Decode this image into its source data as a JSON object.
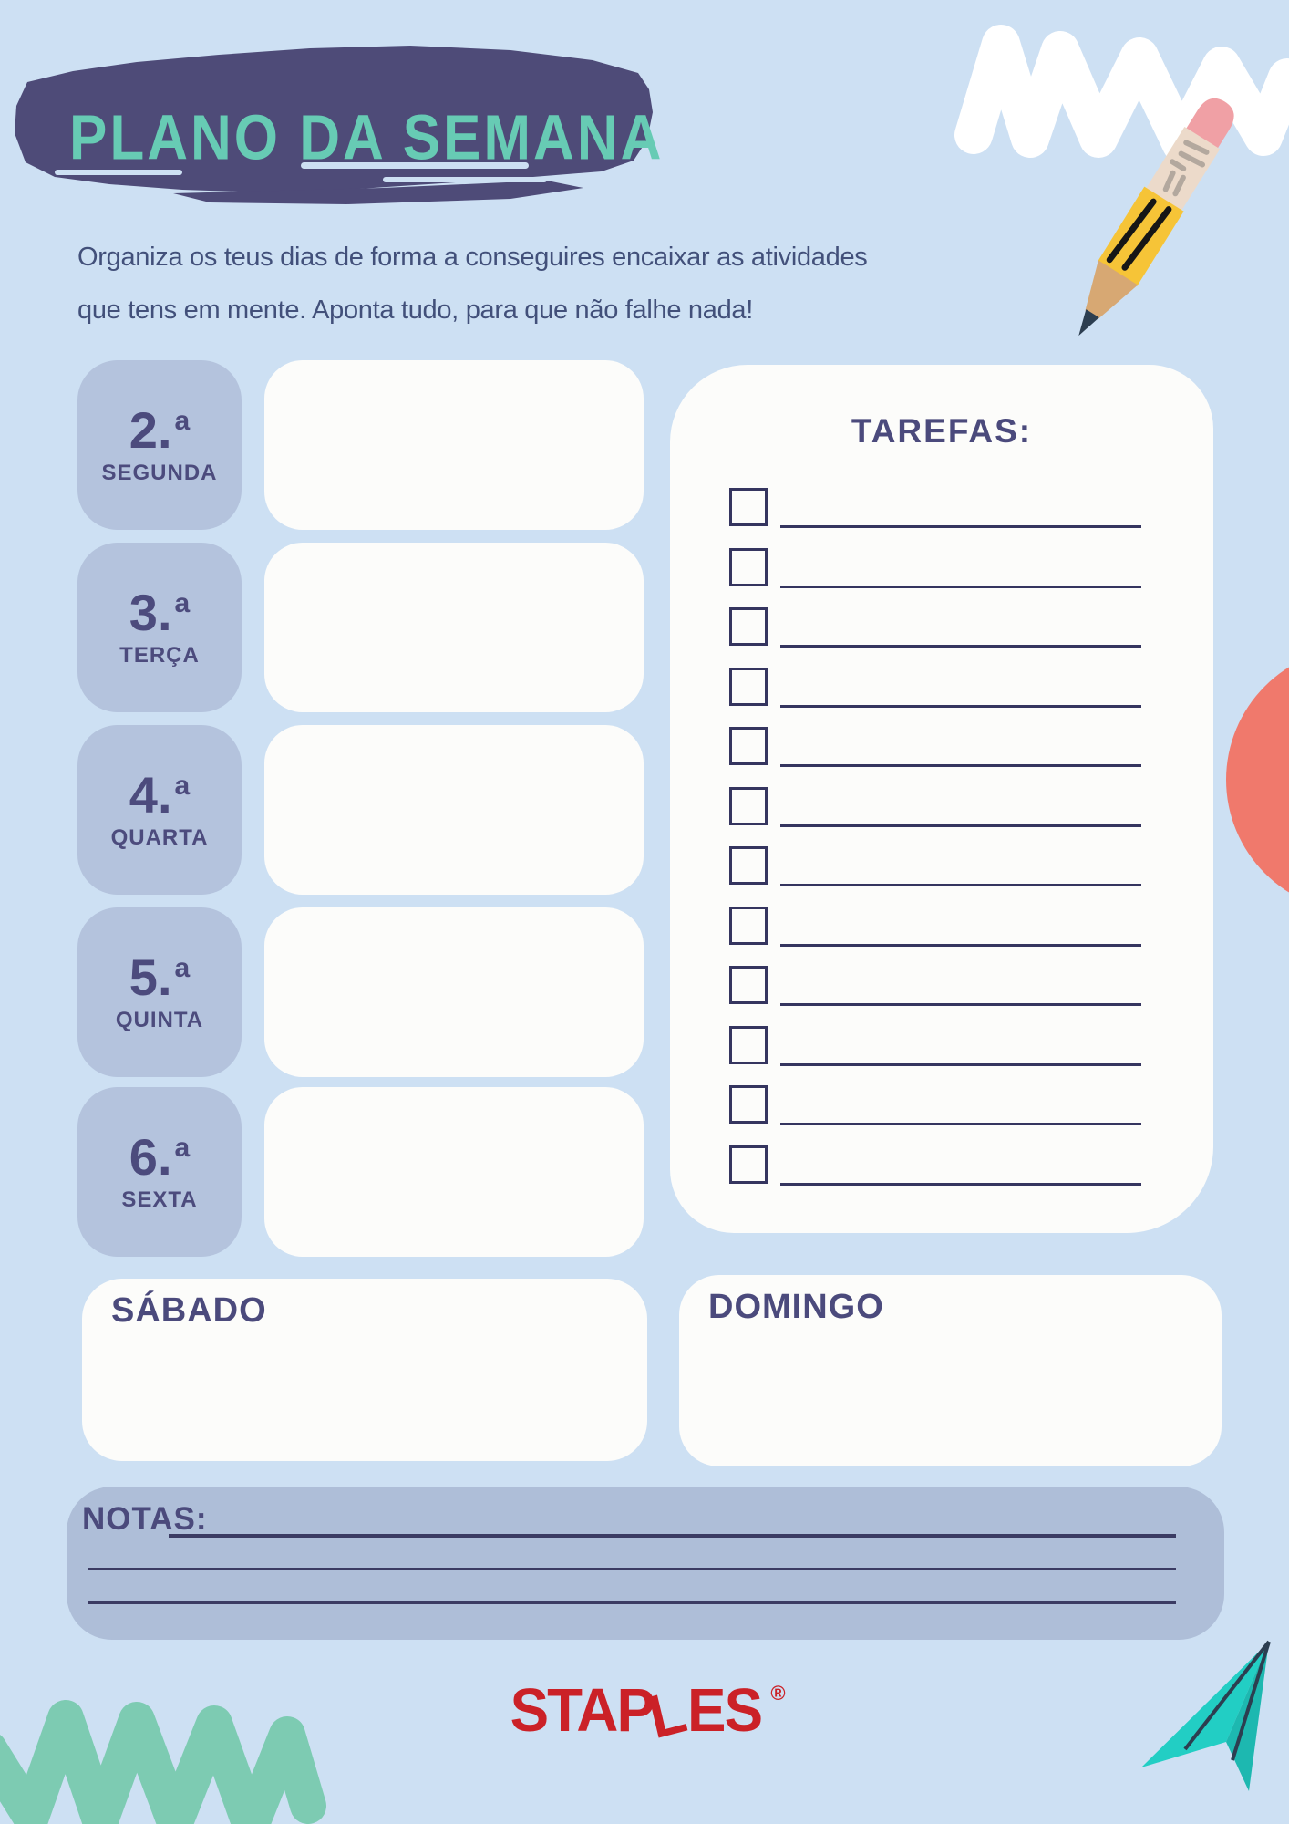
{
  "title": "PLANO DA SEMANA",
  "subtitle": {
    "line1": "Organiza os teus dias de forma a conseguires encaixar as atividades",
    "line2": "que tens em mente. Aponta tudo, para que não falhe nada!"
  },
  "days": [
    {
      "num": "2.",
      "sup": "a",
      "name": "SEGUNDA"
    },
    {
      "num": "3.",
      "sup": "a",
      "name": "TERÇA"
    },
    {
      "num": "4.",
      "sup": "a",
      "name": "QUARTA"
    },
    {
      "num": "5.",
      "sup": "a",
      "name": "QUINTA"
    },
    {
      "num": "6.",
      "sup": "a",
      "name": "SEXTA"
    }
  ],
  "tasks": {
    "title": "TAREFAS:",
    "rows": 12
  },
  "weekend": {
    "saturday_label": "SÁBADO",
    "sunday_label": "DOMINGO"
  },
  "notes": {
    "label": "NOTAS:",
    "lines": 3
  },
  "brand": {
    "prefix": "STAP",
    "bent_letter": "L",
    "suffix": "ES",
    "registered": "®"
  },
  "icons": {
    "pencil": "pencil-illustration",
    "white_scribble": "white-marker-scribble",
    "teal_scribble": "teal-marker-scribble",
    "paper_plane": "paper-plane",
    "coral_circle": "coral-circle"
  },
  "colors": {
    "background": "#cde0f3",
    "brush_stroke": "#4e4b78",
    "title_teal": "#67cbb4",
    "subtitle_text": "#42507a",
    "day_card": "#b4c3dd",
    "day_text": "#4c4b7d",
    "panel_white": "#fcfcfa",
    "checkbox_navy": "#35355f",
    "label_purple": "#4b4a7c",
    "notes_panel": "#aebed8",
    "coral": "#f0796c",
    "brand_red": "#cb2127",
    "scribble_teal": "#7dcbb2",
    "plane_teal": "#22cec4",
    "pencil_yellow": "#f6c437",
    "pencil_eraser": "#f0a0a5"
  }
}
